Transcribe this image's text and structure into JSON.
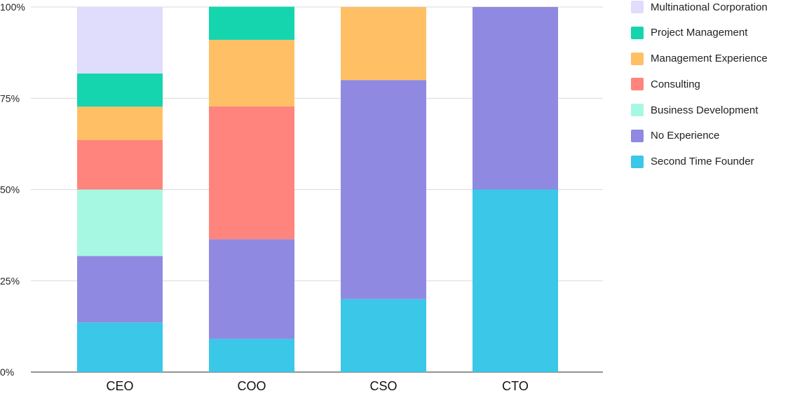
{
  "chart_data": {
    "type": "bar",
    "stacked": true,
    "normalized": true,
    "categories": [
      "CEO",
      "COO",
      "CSO",
      "CTO"
    ],
    "y_ticks": [
      "0%",
      "25%",
      "50%",
      "75%",
      "100%"
    ],
    "ylim": [
      0,
      100
    ],
    "grid": true,
    "legend_position": "right",
    "series": [
      {
        "name": "Second Time Founder",
        "color": "#3AC7E8",
        "values": [
          13.6,
          9.1,
          20,
          50
        ]
      },
      {
        "name": "No Experience",
        "color": "#9089E1",
        "values": [
          18.2,
          27.3,
          60,
          50
        ]
      },
      {
        "name": "Business Development",
        "color": "#A7F8E2",
        "values": [
          18.2,
          0,
          0,
          0
        ]
      },
      {
        "name": "Consulting",
        "color": "#FF847D",
        "values": [
          13.6,
          36.4,
          0,
          0
        ]
      },
      {
        "name": "Management Experience",
        "color": "#FFC065",
        "values": [
          9.1,
          18.2,
          20,
          0
        ]
      },
      {
        "name": "Project Management",
        "color": "#14D5AD",
        "values": [
          9.1,
          9.1,
          0,
          0
        ]
      },
      {
        "name": "Multinational Corporation",
        "color": "#E0DCFC",
        "values": [
          18.2,
          0,
          0,
          0
        ]
      }
    ]
  }
}
